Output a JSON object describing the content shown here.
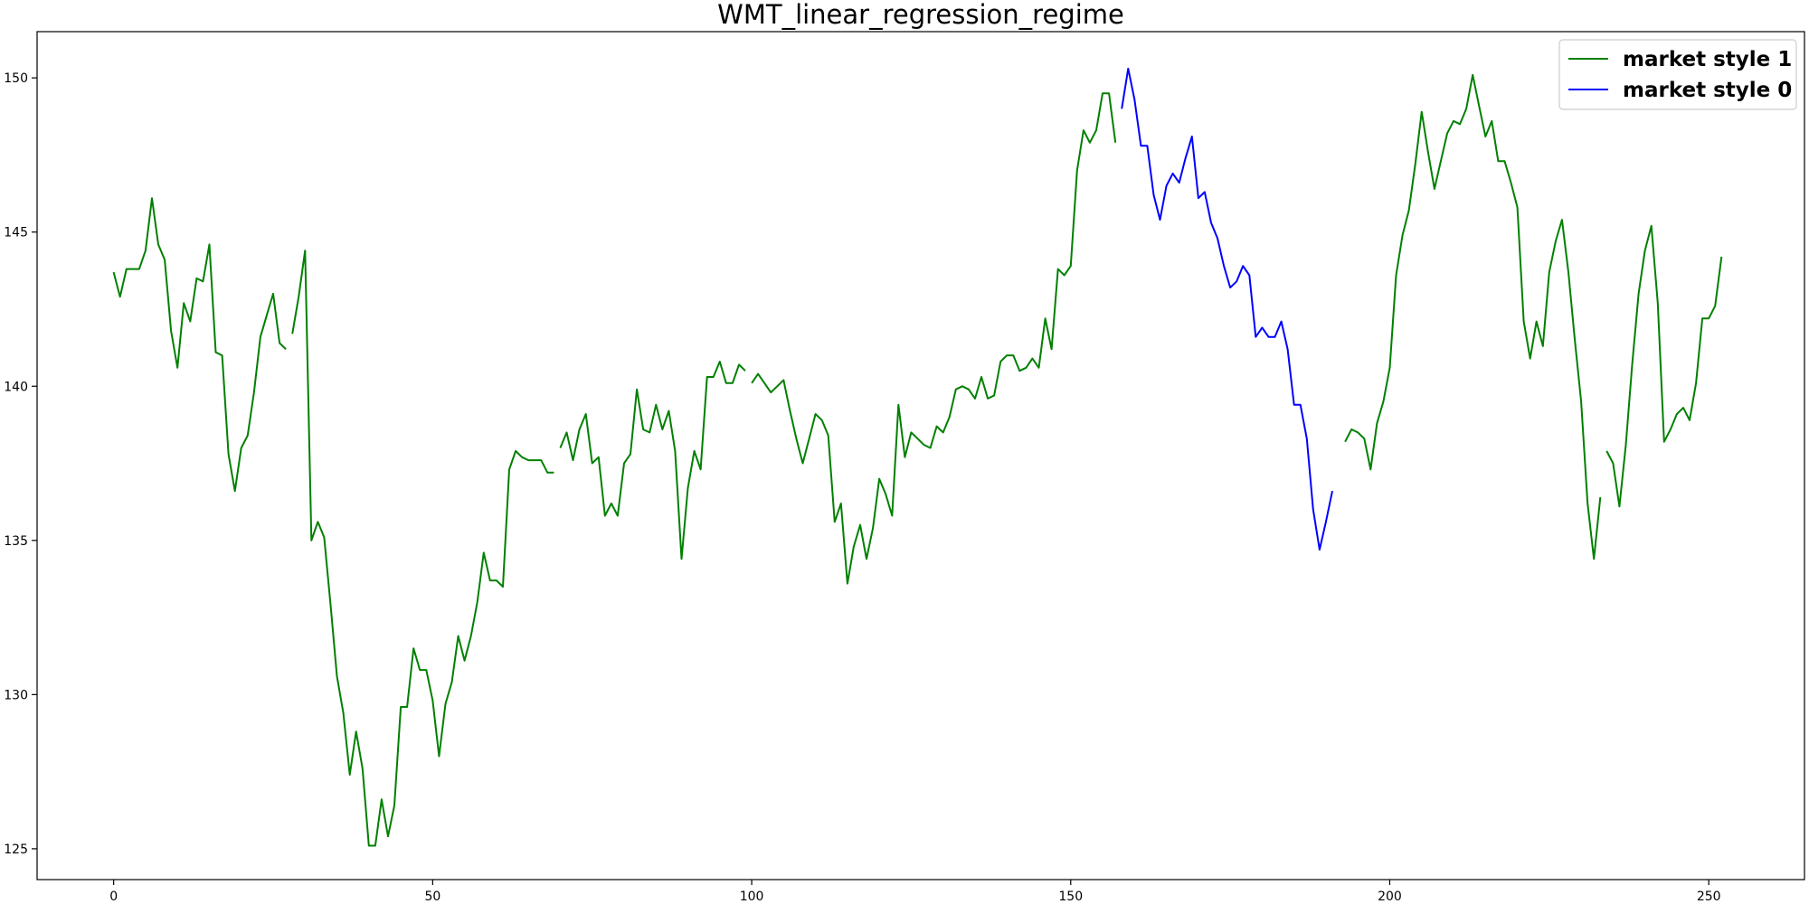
{
  "chart_data": {
    "type": "line",
    "title": "WMT_linear_regression_regime",
    "xlabel": "",
    "ylabel": "",
    "xlim": [
      -12,
      265
    ],
    "ylim": [
      124,
      151.5
    ],
    "xticks": [
      0,
      50,
      100,
      150,
      200,
      250
    ],
    "yticks": [
      125,
      130,
      135,
      140,
      145,
      150
    ],
    "grid": false,
    "legend_position": "top-right",
    "series": [
      {
        "name": "market style 1",
        "color": "#008000",
        "segments": [
          [
            [
              0,
              143.7
            ],
            [
              1,
              142.9
            ],
            [
              2,
              143.8
            ],
            [
              3,
              143.8
            ],
            [
              4,
              143.8
            ],
            [
              5,
              144.4
            ],
            [
              6,
              146.1
            ],
            [
              7,
              144.6
            ],
            [
              8,
              144.1
            ],
            [
              9,
              141.8
            ],
            [
              10,
              140.6
            ],
            [
              11,
              142.7
            ],
            [
              12,
              142.1
            ],
            [
              13,
              143.5
            ],
            [
              14,
              143.4
            ],
            [
              15,
              144.6
            ],
            [
              16,
              141.1
            ],
            [
              17,
              141.0
            ],
            [
              18,
              137.8
            ],
            [
              19,
              136.6
            ],
            [
              20,
              138.0
            ],
            [
              21,
              138.4
            ],
            [
              22,
              139.8
            ],
            [
              23,
              141.6
            ],
            [
              24,
              142.3
            ],
            [
              25,
              143.0
            ],
            [
              26,
              141.4
            ],
            [
              27,
              141.2
            ]
          ],
          [
            [
              28,
              141.7
            ],
            [
              29,
              142.9
            ],
            [
              30,
              144.4
            ],
            [
              31,
              135.0
            ],
            [
              32,
              135.6
            ],
            [
              33,
              135.1
            ],
            [
              34,
              132.9
            ],
            [
              35,
              130.6
            ],
            [
              36,
              129.4
            ],
            [
              37,
              127.4
            ],
            [
              38,
              128.8
            ],
            [
              39,
              127.6
            ],
            [
              40,
              125.1
            ],
            [
              41,
              125.1
            ],
            [
              42,
              126.6
            ],
            [
              43,
              125.4
            ],
            [
              44,
              126.4
            ],
            [
              45,
              129.6
            ],
            [
              46,
              129.6
            ],
            [
              47,
              131.5
            ],
            [
              48,
              130.8
            ],
            [
              49,
              130.8
            ],
            [
              50,
              129.8
            ],
            [
              51,
              128.0
            ],
            [
              52,
              129.7
            ],
            [
              53,
              130.4
            ],
            [
              54,
              131.9
            ],
            [
              55,
              131.1
            ],
            [
              56,
              131.9
            ],
            [
              57,
              133.0
            ],
            [
              58,
              134.6
            ],
            [
              59,
              133.7
            ],
            [
              60,
              133.7
            ],
            [
              61,
              133.5
            ],
            [
              62,
              137.3
            ],
            [
              63,
              137.9
            ],
            [
              64,
              137.7
            ],
            [
              65,
              137.6
            ],
            [
              66,
              137.6
            ],
            [
              67,
              137.6
            ],
            [
              68,
              137.2
            ],
            [
              69,
              137.2
            ]
          ],
          [
            [
              70,
              138.0
            ],
            [
              71,
              138.5
            ],
            [
              72,
              137.6
            ],
            [
              73,
              138.6
            ],
            [
              74,
              139.1
            ],
            [
              75,
              137.5
            ],
            [
              76,
              137.7
            ],
            [
              77,
              135.8
            ],
            [
              78,
              136.2
            ],
            [
              79,
              135.8
            ],
            [
              80,
              137.5
            ],
            [
              81,
              137.8
            ],
            [
              82,
              139.9
            ],
            [
              83,
              138.6
            ],
            [
              84,
              138.5
            ],
            [
              85,
              139.4
            ],
            [
              86,
              138.6
            ],
            [
              87,
              139.2
            ],
            [
              88,
              137.9
            ],
            [
              89,
              134.4
            ],
            [
              90,
              136.7
            ],
            [
              91,
              137.9
            ],
            [
              92,
              137.3
            ],
            [
              93,
              140.3
            ],
            [
              94,
              140.3
            ],
            [
              95,
              140.8
            ],
            [
              96,
              140.1
            ],
            [
              97,
              140.1
            ],
            [
              98,
              140.7
            ],
            [
              99,
              140.5
            ]
          ],
          [
            [
              100,
              140.1
            ],
            [
              101,
              140.4
            ],
            [
              102,
              140.1
            ],
            [
              103,
              139.8
            ],
            [
              104,
              140.0
            ],
            [
              105,
              140.2
            ],
            [
              106,
              139.2
            ],
            [
              107,
              138.3
            ],
            [
              108,
              137.5
            ],
            [
              109,
              138.3
            ],
            [
              110,
              139.1
            ],
            [
              111,
              138.9
            ],
            [
              112,
              138.4
            ],
            [
              113,
              135.6
            ],
            [
              114,
              136.2
            ],
            [
              115,
              133.6
            ],
            [
              116,
              134.8
            ],
            [
              117,
              135.5
            ],
            [
              118,
              134.4
            ],
            [
              119,
              135.4
            ],
            [
              120,
              137.0
            ],
            [
              121,
              136.5
            ],
            [
              122,
              135.8
            ],
            [
              123,
              139.4
            ],
            [
              124,
              137.7
            ],
            [
              125,
              138.5
            ],
            [
              126,
              138.3
            ],
            [
              127,
              138.1
            ],
            [
              128,
              138.0
            ],
            [
              129,
              138.7
            ],
            [
              130,
              138.5
            ],
            [
              131,
              139.0
            ],
            [
              132,
              139.9
            ],
            [
              133,
              140.0
            ],
            [
              134,
              139.9
            ],
            [
              135,
              139.6
            ],
            [
              136,
              140.3
            ],
            [
              137,
              139.6
            ],
            [
              138,
              139.7
            ],
            [
              139,
              140.8
            ],
            [
              140,
              141.0
            ],
            [
              141,
              141.0
            ],
            [
              142,
              140.5
            ],
            [
              143,
              140.6
            ],
            [
              144,
              140.9
            ],
            [
              145,
              140.6
            ],
            [
              146,
              142.2
            ],
            [
              147,
              141.2
            ],
            [
              148,
              143.8
            ],
            [
              149,
              143.6
            ],
            [
              150,
              143.9
            ],
            [
              151,
              147.0
            ],
            [
              152,
              148.3
            ],
            [
              153,
              147.9
            ],
            [
              154,
              148.3
            ],
            [
              155,
              149.5
            ],
            [
              156,
              149.5
            ],
            [
              157,
              147.9
            ]
          ],
          [
            [
              193,
              138.2
            ],
            [
              194,
              138.6
            ],
            [
              195,
              138.5
            ],
            [
              196,
              138.3
            ],
            [
              197,
              137.3
            ],
            [
              198,
              138.8
            ],
            [
              199,
              139.5
            ],
            [
              200,
              140.6
            ],
            [
              201,
              143.6
            ],
            [
              202,
              144.9
            ],
            [
              203,
              145.7
            ],
            [
              204,
              147.2
            ],
            [
              205,
              148.9
            ],
            [
              206,
              147.6
            ],
            [
              207,
              146.4
            ],
            [
              208,
              147.3
            ],
            [
              209,
              148.2
            ],
            [
              210,
              148.6
            ],
            [
              211,
              148.5
            ],
            [
              212,
              149.0
            ],
            [
              213,
              150.1
            ],
            [
              214,
              149.1
            ],
            [
              215,
              148.1
            ],
            [
              216,
              148.6
            ],
            [
              217,
              147.3
            ],
            [
              218,
              147.3
            ],
            [
              219,
              146.6
            ],
            [
              220,
              145.8
            ],
            [
              221,
              142.1
            ],
            [
              222,
              140.9
            ],
            [
              223,
              142.1
            ],
            [
              224,
              141.3
            ],
            [
              225,
              143.7
            ],
            [
              226,
              144.7
            ],
            [
              227,
              145.4
            ],
            [
              228,
              143.7
            ],
            [
              229,
              141.5
            ],
            [
              230,
              139.5
            ],
            [
              231,
              136.2
            ],
            [
              232,
              134.4
            ],
            [
              233,
              136.4
            ]
          ],
          [
            [
              234,
              137.9
            ],
            [
              235,
              137.5
            ],
            [
              236,
              136.1
            ],
            [
              237,
              138.1
            ],
            [
              238,
              140.7
            ],
            [
              239,
              143.0
            ],
            [
              240,
              144.4
            ],
            [
              241,
              145.2
            ],
            [
              242,
              142.7
            ],
            [
              243,
              138.2
            ],
            [
              244,
              138.6
            ],
            [
              245,
              139.1
            ],
            [
              246,
              139.3
            ],
            [
              247,
              138.9
            ],
            [
              248,
              140.1
            ],
            [
              249,
              142.2
            ],
            [
              250,
              142.2
            ],
            [
              251,
              142.6
            ],
            [
              252,
              144.2
            ]
          ]
        ]
      },
      {
        "name": "market style 0",
        "color": "#0000ff",
        "segments": [
          [
            [
              158,
              149.0
            ],
            [
              159,
              150.3
            ],
            [
              160,
              149.3
            ],
            [
              161,
              147.8
            ],
            [
              162,
              147.8
            ],
            [
              163,
              146.2
            ],
            [
              164,
              145.4
            ],
            [
              165,
              146.5
            ],
            [
              166,
              146.9
            ],
            [
              167,
              146.6
            ],
            [
              168,
              147.4
            ],
            [
              169,
              148.1
            ],
            [
              170,
              146.1
            ],
            [
              171,
              146.3
            ],
            [
              172,
              145.3
            ],
            [
              173,
              144.8
            ],
            [
              174,
              143.9
            ],
            [
              175,
              143.2
            ],
            [
              176,
              143.4
            ],
            [
              177,
              143.9
            ],
            [
              178,
              143.6
            ],
            [
              179,
              141.6
            ],
            [
              180,
              141.9
            ],
            [
              181,
              141.6
            ],
            [
              182,
              141.6
            ],
            [
              183,
              142.1
            ],
            [
              184,
              141.2
            ],
            [
              185,
              139.4
            ],
            [
              186,
              139.4
            ],
            [
              187,
              138.3
            ],
            [
              188,
              136.0
            ],
            [
              189,
              134.7
            ],
            [
              190,
              135.6
            ],
            [
              191,
              136.6
            ]
          ]
        ]
      }
    ]
  }
}
